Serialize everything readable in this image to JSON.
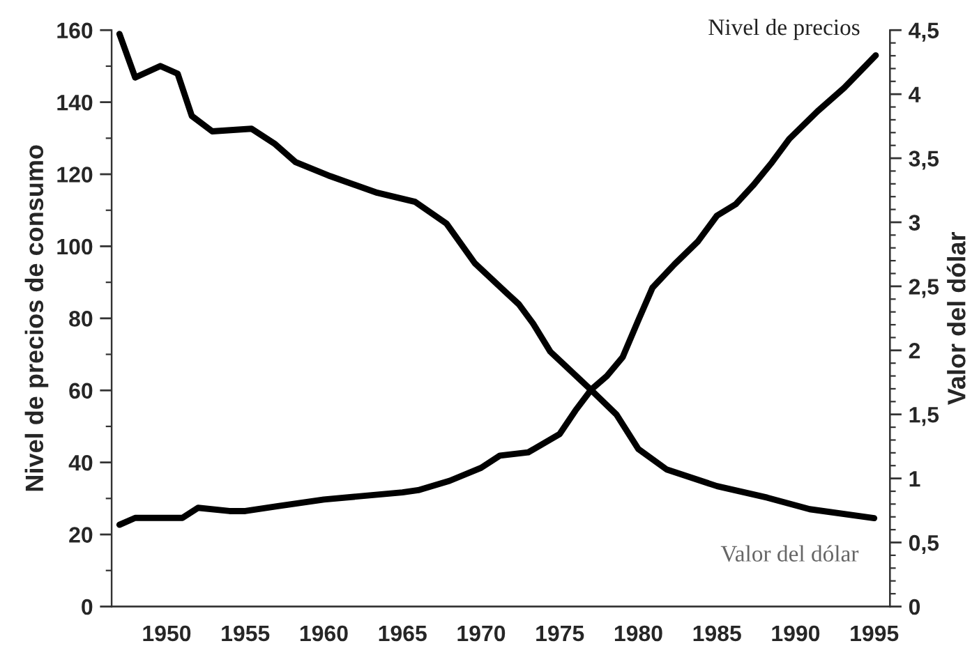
{
  "chart_data": {
    "type": "line",
    "xlabel": null,
    "ylabel": "Nivel de precios de consumo",
    "y2label": "Valor del dólar",
    "xlim": [
      1946.5,
      1996
    ],
    "xticks": [
      1950,
      1955,
      1960,
      1965,
      1970,
      1975,
      1980,
      1985,
      1990,
      1995
    ],
    "ylim": [
      0,
      160
    ],
    "yticks": [
      0,
      20,
      40,
      60,
      80,
      100,
      120,
      140,
      160
    ],
    "y2lim": [
      0,
      4.5
    ],
    "y2ticks": [
      0,
      {
        "value": 0.5,
        "label": "0,5"
      },
      1,
      {
        "value": 1.5,
        "label": "1,5"
      },
      2,
      {
        "value": 2.5,
        "label": "2,5"
      },
      3,
      {
        "value": 3.5,
        "label": "3,5"
      },
      4,
      {
        "value": 4.5,
        "label": "4,5"
      }
    ],
    "grid": false,
    "legend": false,
    "marker": "none",
    "line_style": "solid",
    "series": [
      {
        "name": "Nivel de precios",
        "color": "#000000",
        "x": [
          1947,
          1948,
          1951,
          1952,
          1954,
          1955,
          1957,
          1960,
          1965,
          1966,
          1968,
          1970,
          1971.2,
          1973,
          1975,
          1976,
          1977,
          1978,
          1979,
          1980,
          1980.9,
          1982.3,
          1983.8,
          1985,
          1986.2,
          1987.3,
          1988.5,
          1989.6,
          1991.4,
          1993.1,
          1995.1
        ],
        "values": [
          22.7,
          24.6,
          24.6,
          27.4,
          26.5,
          26.5,
          27.8,
          29.7,
          31.7,
          32.3,
          34.9,
          38.5,
          41.9,
          42.8,
          47.9,
          54.4,
          60.2,
          64,
          69.2,
          79.5,
          88.5,
          95,
          101.4,
          108.5,
          111.7,
          116.9,
          123.3,
          129.8,
          137.5,
          144,
          153
        ]
      },
      {
        "name": "Valor del dólar",
        "color": "#000000",
        "axis": "y2",
        "x": [
          1947,
          1948,
          1949.6,
          1950.7,
          1951.6,
          1952.9,
          1955.4,
          1956.9,
          1958.2,
          1960.4,
          1963.4,
          1965.8,
          1967.8,
          1969.6,
          1971.6,
          1972.4,
          1973.3,
          1974.4,
          1977,
          1978.6,
          1980,
          1981.8,
          1985,
          1988.2,
          1990.9,
          1995
        ],
        "values": [
          4.47,
          4.13,
          4.22,
          4.16,
          3.83,
          3.71,
          3.73,
          3.61,
          3.47,
          3.36,
          3.23,
          3.16,
          2.99,
          2.68,
          2.45,
          2.36,
          2.21,
          1.99,
          1.69,
          1.5,
          1.23,
          1.07,
          0.94,
          0.85,
          0.76,
          0.69
        ]
      }
    ]
  }
}
